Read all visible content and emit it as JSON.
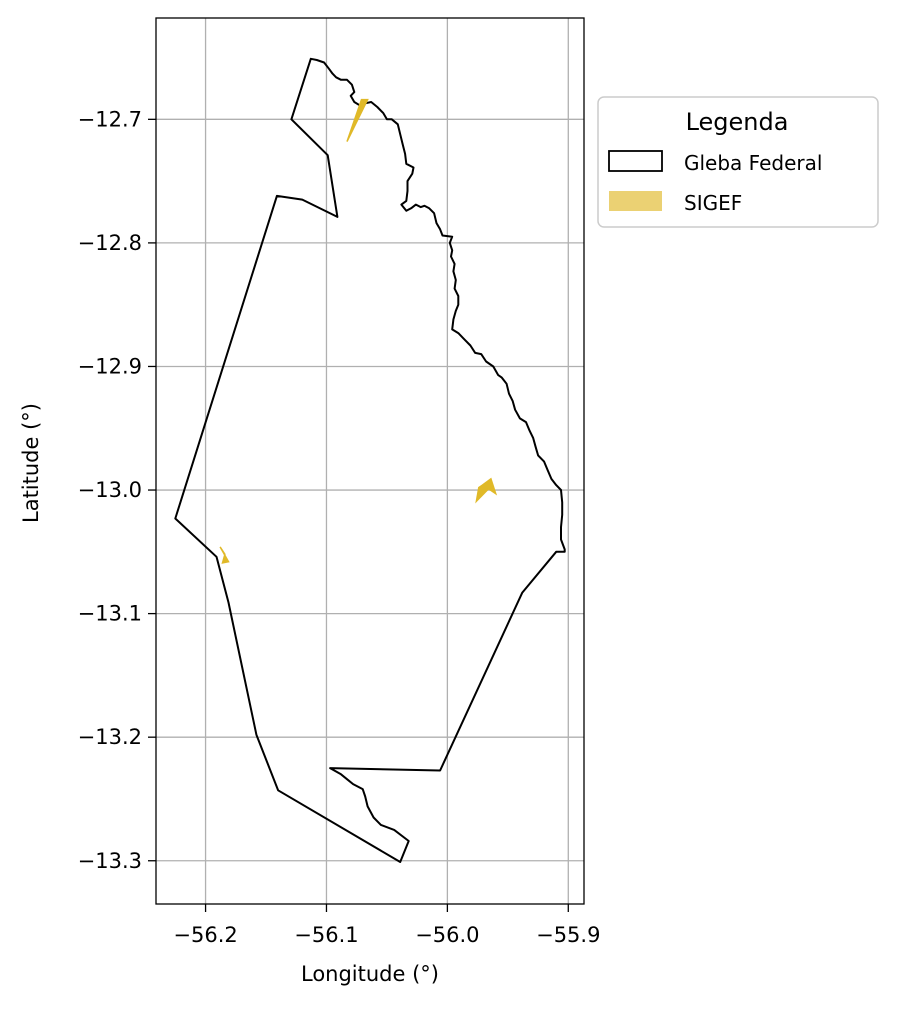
{
  "chart_data": {
    "type": "map",
    "xlabel": "Longitude (°)",
    "ylabel": "Latitude (°)",
    "xlim": [
      -56.241,
      -55.887
    ],
    "ylim": [
      -13.335,
      -12.618
    ],
    "xticks": [
      -56.2,
      -56.1,
      -56.0,
      -55.9
    ],
    "xtick_labels": [
      "−56.2",
      "−56.1",
      "−56.0",
      "−55.9"
    ],
    "yticks": [
      -12.7,
      -12.8,
      -12.9,
      -13.0,
      -13.1,
      -13.2,
      -13.3
    ],
    "ytick_labels": [
      "−12.7",
      "−12.8",
      "−12.9",
      "−13.0",
      "−13.1",
      "−13.2",
      "−13.3"
    ],
    "grid": true,
    "legend": {
      "title": "Legenda",
      "placement": "outside upper right",
      "entries": [
        {
          "label": "Gleba Federal",
          "style": "outline",
          "color": "#000000"
        },
        {
          "label": "SIGEF",
          "style": "fill",
          "color": "#E0B928"
        }
      ]
    },
    "layers": [
      {
        "name": "Gleba Federal",
        "style": "outline",
        "color": "#000000",
        "polygon": [
          [
            -56.129,
            -12.7
          ],
          [
            -56.113,
            -12.651
          ],
          [
            -56.108,
            -12.652
          ],
          [
            -56.102,
            -12.654
          ],
          [
            -56.098,
            -12.659
          ],
          [
            -56.095,
            -12.663
          ],
          [
            -56.092,
            -12.666
          ],
          [
            -56.088,
            -12.668
          ],
          [
            -56.083,
            -12.668
          ],
          [
            -56.079,
            -12.672
          ],
          [
            -56.077,
            -12.678
          ],
          [
            -56.08,
            -12.681
          ],
          [
            -56.077,
            -12.686
          ],
          [
            -56.072,
            -12.689
          ],
          [
            -56.068,
            -12.687
          ],
          [
            -56.063,
            -12.686
          ],
          [
            -56.058,
            -12.69
          ],
          [
            -56.053,
            -12.695
          ],
          [
            -56.05,
            -12.7
          ],
          [
            -56.046,
            -12.7
          ],
          [
            -56.041,
            -12.704
          ],
          [
            -56.039,
            -12.712
          ],
          [
            -56.037,
            -12.72
          ],
          [
            -56.035,
            -12.728
          ],
          [
            -56.034,
            -12.736
          ],
          [
            -56.028,
            -12.739
          ],
          [
            -56.029,
            -12.744
          ],
          [
            -56.033,
            -12.75
          ],
          [
            -56.033,
            -12.758
          ],
          [
            -56.034,
            -12.766
          ],
          [
            -56.038,
            -12.769
          ],
          [
            -56.034,
            -12.774
          ],
          [
            -56.03,
            -12.772
          ],
          [
            -56.026,
            -12.769
          ],
          [
            -56.022,
            -12.771
          ],
          [
            -56.019,
            -12.77
          ],
          [
            -56.015,
            -12.772
          ],
          [
            -56.011,
            -12.776
          ],
          [
            -56.009,
            -12.784
          ],
          [
            -56.006,
            -12.789
          ],
          [
            -56.004,
            -12.794
          ],
          [
            -55.996,
            -12.795
          ],
          [
            -55.998,
            -12.8
          ],
          [
            -55.996,
            -12.806
          ],
          [
            -55.997,
            -12.811
          ],
          [
            -55.994,
            -12.817
          ],
          [
            -55.995,
            -12.823
          ],
          [
            -55.993,
            -12.83
          ],
          [
            -55.994,
            -12.837
          ],
          [
            -55.991,
            -12.843
          ],
          [
            -55.991,
            -12.85
          ],
          [
            -55.993,
            -12.855
          ],
          [
            -55.995,
            -12.862
          ],
          [
            -55.996,
            -12.87
          ],
          [
            -55.991,
            -12.873
          ],
          [
            -55.986,
            -12.878
          ],
          [
            -55.981,
            -12.883
          ],
          [
            -55.977,
            -12.889
          ],
          [
            -55.972,
            -12.89
          ],
          [
            -55.968,
            -12.896
          ],
          [
            -55.962,
            -12.9
          ],
          [
            -55.958,
            -12.907
          ],
          [
            -55.955,
            -12.909
          ],
          [
            -55.951,
            -12.914
          ],
          [
            -55.949,
            -12.922
          ],
          [
            -55.946,
            -12.928
          ],
          [
            -55.944,
            -12.935
          ],
          [
            -55.94,
            -12.942
          ],
          [
            -55.935,
            -12.945
          ],
          [
            -55.932,
            -12.952
          ],
          [
            -55.929,
            -12.958
          ],
          [
            -55.927,
            -12.965
          ],
          [
            -55.925,
            -12.972
          ],
          [
            -55.92,
            -12.977
          ],
          [
            -55.917,
            -12.984
          ],
          [
            -55.914,
            -12.991
          ],
          [
            -55.91,
            -12.996
          ],
          [
            -55.906,
            -13.0
          ],
          [
            -55.905,
            -13.01
          ],
          [
            -55.905,
            -13.02
          ],
          [
            -55.906,
            -13.03
          ],
          [
            -55.906,
            -13.04
          ],
          [
            -55.903,
            -13.048
          ],
          [
            -55.903,
            -13.05
          ],
          [
            -55.91,
            -13.05
          ],
          [
            -55.938,
            -13.083
          ],
          [
            -56.006,
            -13.227
          ],
          [
            -56.097,
            -13.225
          ],
          [
            -56.088,
            -13.23
          ],
          [
            -56.083,
            -13.234
          ],
          [
            -56.078,
            -13.238
          ],
          [
            -56.07,
            -13.242
          ],
          [
            -56.068,
            -13.248
          ],
          [
            -56.066,
            -13.256
          ],
          [
            -56.061,
            -13.265
          ],
          [
            -56.055,
            -13.271
          ],
          [
            -56.044,
            -13.275
          ],
          [
            -56.032,
            -13.284
          ],
          [
            -56.039,
            -13.301
          ],
          [
            -56.14,
            -13.243
          ],
          [
            -56.158,
            -13.198
          ],
          [
            -56.181,
            -13.091
          ],
          [
            -56.191,
            -13.054
          ],
          [
            -56.225,
            -13.023
          ],
          [
            -56.141,
            -12.762
          ],
          [
            -56.12,
            -12.765
          ],
          [
            -56.091,
            -12.779
          ],
          [
            -56.099,
            -12.729
          ]
        ]
      },
      {
        "name": "SIGEF",
        "style": "fill",
        "color": "#E0B928",
        "polygons": [
          [
            [
              -56.066,
              -12.684
            ],
            [
              -56.071,
              -12.684
            ],
            [
              -56.083,
              -12.718
            ]
          ],
          [
            [
              -55.976,
              -13.009
            ],
            [
              -55.966,
              -12.999
            ],
            [
              -55.96,
              -13.003
            ],
            [
              -55.964,
              -12.991
            ],
            [
              -55.971,
              -12.996
            ],
            [
              -55.974,
              -12.998
            ]
          ],
          [
            [
              -56.188,
              -13.046
            ],
            [
              -56.184,
              -13.052
            ],
            [
              -56.186,
              -13.059
            ],
            [
              -56.181,
              -13.058
            ]
          ]
        ]
      }
    ]
  }
}
